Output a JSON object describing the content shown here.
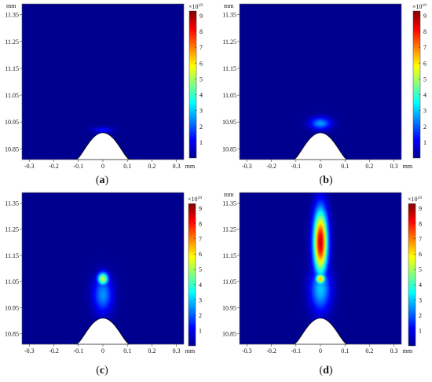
{
  "figure": {
    "colors": {
      "background": "#00008f",
      "electrode": "#ffffff",
      "colormap": [
        "#00008f",
        "#0000ff",
        "#0080ff",
        "#00ffff",
        "#80ff80",
        "#ffff00",
        "#ff8000",
        "#ff0000",
        "#800000"
      ]
    }
  },
  "chart_data": [
    {
      "type": "heatmap",
      "panel": "a",
      "caption": "(a)",
      "x_unit": "mm",
      "y_unit": "mm",
      "xlim": [
        -0.33,
        0.33
      ],
      "ylim": [
        10.81,
        11.39
      ],
      "x_ticks": [
        "-0.3",
        "-0.2",
        "-0.1",
        "0",
        "0.1",
        "0.2",
        "0.3"
      ],
      "y_ticks": [
        "10.85",
        "10.95",
        "11.05",
        "11.15",
        "11.25",
        "11.35"
      ],
      "colorbar": {
        "multiplier": "×10",
        "exponent": "19",
        "ticks": [
          "1",
          "2",
          "3",
          "4",
          "5",
          "6",
          "7",
          "8",
          "9"
        ],
        "range": [
          0,
          9.3
        ]
      },
      "electrode_tip_y": 10.91,
      "hotspots": [
        {
          "x": 0.0,
          "y": 10.92,
          "sx": 0.028,
          "sy": 0.008,
          "value": 1.3
        }
      ]
    },
    {
      "type": "heatmap",
      "panel": "b",
      "caption": "(b)",
      "x_unit": "mm",
      "y_unit": "mm",
      "xlim": [
        -0.33,
        0.33
      ],
      "ylim": [
        10.81,
        11.39
      ],
      "x_ticks": [
        "-0.3",
        "-0.2",
        "-0.1",
        "0",
        "0.1",
        "0.2",
        "0.3"
      ],
      "y_ticks": [
        "10.85",
        "10.95",
        "11.05",
        "11.15",
        "11.25",
        "11.35"
      ],
      "colorbar": {
        "multiplier": "×10",
        "exponent": "19",
        "ticks": [
          "1",
          "2",
          "3",
          "4",
          "5",
          "6",
          "7",
          "8",
          "9"
        ],
        "range": [
          0,
          9.3
        ]
      },
      "electrode_tip_y": 10.91,
      "hotspots": [
        {
          "x": 0.0,
          "y": 10.945,
          "sx": 0.03,
          "sy": 0.016,
          "value": 2.6
        }
      ]
    },
    {
      "type": "heatmap",
      "panel": "c",
      "caption": "(c)",
      "x_unit": "mm",
      "y_unit": "",
      "xlim": [
        -0.33,
        0.33
      ],
      "ylim": [
        10.81,
        11.39
      ],
      "x_ticks": [
        "-0.3",
        "-0.2",
        "-0.1",
        "0",
        "0.1",
        "0.2",
        "0.3"
      ],
      "y_ticks": [
        "10.85",
        "10.95",
        "11.05",
        "11.15",
        "11.25",
        "11.35"
      ],
      "colorbar": {
        "multiplier": "×10",
        "exponent": "19",
        "ticks": [
          "1",
          "2",
          "3",
          "4",
          "5",
          "6",
          "7",
          "8",
          "9"
        ],
        "range": [
          0,
          9.3
        ]
      },
      "electrode_tip_y": 10.91,
      "hotspots": [
        {
          "x": 0.0,
          "y": 11.06,
          "sx": 0.016,
          "sy": 0.018,
          "value": 5.4
        },
        {
          "x": 0.0,
          "y": 11.0,
          "sx": 0.028,
          "sy": 0.05,
          "value": 2.5
        }
      ]
    },
    {
      "type": "heatmap",
      "panel": "d",
      "caption": "(d)",
      "x_unit": "mm",
      "y_unit": "mm",
      "xlim": [
        -0.33,
        0.33
      ],
      "ylim": [
        10.81,
        11.39
      ],
      "x_ticks": [
        "-0.3",
        "-0.2",
        "-0.1",
        "0",
        "0.1",
        "0.2",
        "0.3"
      ],
      "y_ticks": [
        "10.85",
        "10.95",
        "11.05",
        "11.15",
        "11.25",
        "11.35"
      ],
      "colorbar": {
        "multiplier": "×10",
        "exponent": "19",
        "ticks": [
          "1",
          "2",
          "3",
          "4",
          "5",
          "6",
          "7",
          "8",
          "9"
        ],
        "range": [
          0,
          9.3
        ]
      },
      "electrode_tip_y": 10.91,
      "hotspots": [
        {
          "x": 0.0,
          "y": 11.2,
          "sx": 0.02,
          "sy": 0.085,
          "value": 8.7
        },
        {
          "x": 0.0,
          "y": 11.06,
          "sx": 0.015,
          "sy": 0.015,
          "value": 6.5
        },
        {
          "x": 0.0,
          "y": 11.02,
          "sx": 0.03,
          "sy": 0.06,
          "value": 3.0
        }
      ]
    }
  ]
}
